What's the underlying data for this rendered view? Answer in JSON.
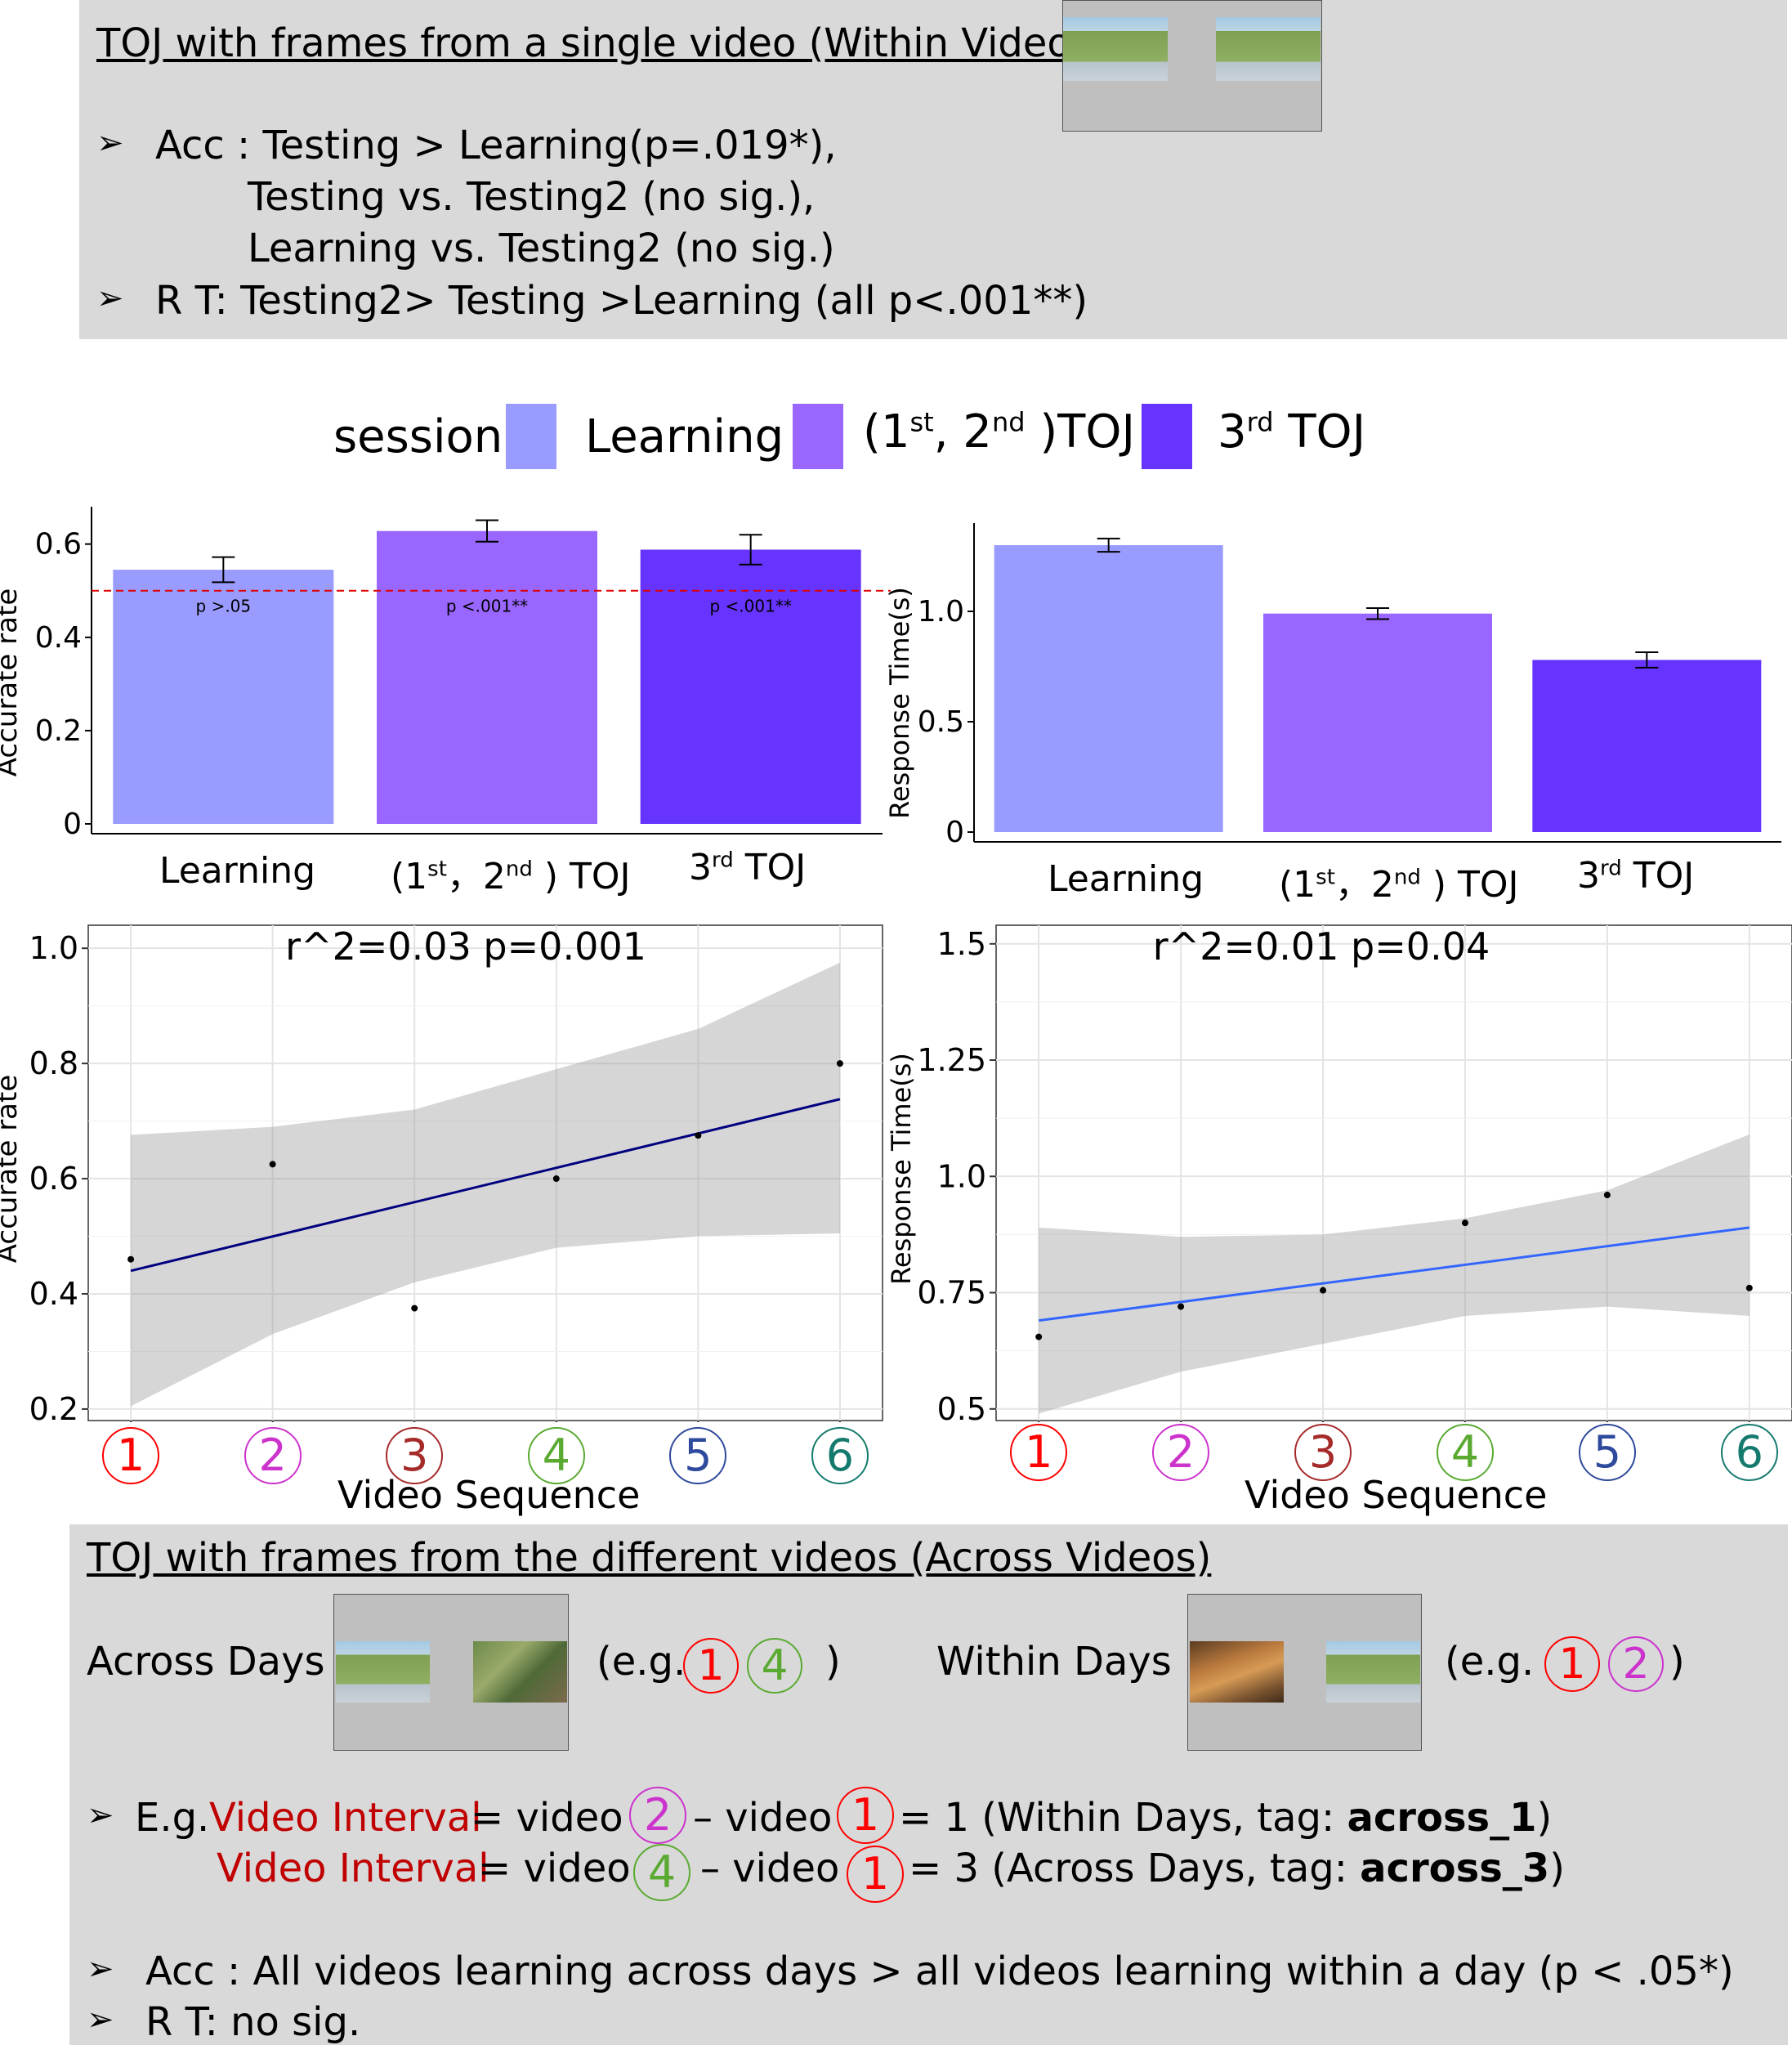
{
  "top_panel": {
    "title": "TOJ with frames from a single video (Within Videos)",
    "bullet": "➢",
    "bullets": [
      "Acc : Testing > Learning(p=.019*),",
      "Testing vs. Testing2 (no sig.),",
      "Learning vs. Testing2 (no sig.)",
      "R T:   Testing2> Testing >Learning (all p<.001**)"
    ]
  },
  "legend": {
    "title": "session",
    "items": [
      {
        "label": "Learning",
        "color": "#9a9bff"
      },
      {
        "label": "(1st, 2nd )TOJ",
        "color": "#9966ff"
      },
      {
        "label": "3rd TOJ",
        "color": "#6633ff"
      }
    ]
  },
  "chart_data": [
    {
      "type": "bar",
      "ylabel": "Accurate rate",
      "categories": [
        "Learning",
        "(1st, 2nd) TOJ",
        "3rd TOJ"
      ],
      "values": [
        0.545,
        0.628,
        0.588
      ],
      "errors": [
        0.027,
        0.023,
        0.032
      ],
      "colors": [
        "#9a9bff",
        "#9966ff",
        "#6633ff"
      ],
      "annotations": [
        "p >.05",
        "p <.001**",
        "p <.001**"
      ],
      "reference_line": 0.5,
      "ylim": [
        0,
        0.68
      ],
      "yticks": [
        0,
        0.2,
        0.4,
        0.6
      ],
      "ytick_labels": [
        "0",
        "0.2",
        "0.4",
        "0.6"
      ]
    },
    {
      "type": "bar",
      "ylabel": "Response Time(s)",
      "categories": [
        "Learning",
        "(1st, 2nd) TOJ",
        "3rd TOJ"
      ],
      "values": [
        1.3,
        0.99,
        0.78
      ],
      "errors": [
        0.03,
        0.025,
        0.035
      ],
      "colors": [
        "#9a9bff",
        "#9966ff",
        "#6633ff"
      ],
      "ylim": [
        0,
        1.4
      ],
      "yticks": [
        0,
        0.5,
        1.0
      ],
      "ytick_labels": [
        "0",
        "0.5",
        "1.0"
      ]
    },
    {
      "type": "scatter",
      "annotation": "r^2=0.03   p=0.001",
      "ylabel": "Accurate rate",
      "xlabel": "Video Sequence",
      "x": [
        1,
        2,
        3,
        4,
        5,
        6
      ],
      "y": [
        0.46,
        0.625,
        0.375,
        0.6,
        0.675,
        0.8
      ],
      "fit": {
        "x": [
          1,
          6
        ],
        "y": [
          0.44,
          0.738
        ]
      },
      "band_upper": [
        0.676,
        0.69,
        0.72,
        0.79,
        0.86,
        0.975
      ],
      "band_lower": [
        0.205,
        0.33,
        0.42,
        0.48,
        0.5,
        0.505
      ],
      "xlim": [
        0.7,
        6.3
      ],
      "ylim": [
        0.18,
        1.04
      ],
      "yticks": [
        0.2,
        0.4,
        0.6,
        0.8,
        1.0
      ],
      "ytick_labels": [
        "0.2",
        "0.4",
        "0.6",
        "0.8",
        "1.0"
      ],
      "line_color": "#00007f",
      "grid": true
    },
    {
      "type": "scatter",
      "annotation": "r^2=0.01   p=0.04",
      "ylabel": "Response Time(s)",
      "xlabel": "Video Sequence",
      "x": [
        1,
        2,
        3,
        4,
        5,
        6
      ],
      "y": [
        0.655,
        0.72,
        0.755,
        0.9,
        0.96,
        0.76
      ],
      "fit": {
        "x": [
          1,
          6
        ],
        "y": [
          0.69,
          0.89
        ]
      },
      "band_upper": [
        0.89,
        0.87,
        0.875,
        0.91,
        0.97,
        1.09
      ],
      "band_lower": [
        0.49,
        0.58,
        0.64,
        0.7,
        0.72,
        0.7
      ],
      "xlim": [
        0.7,
        6.3
      ],
      "ylim": [
        0.475,
        1.54
      ],
      "yticks": [
        0.5,
        0.75,
        1.0,
        1.25,
        1.5
      ],
      "ytick_labels": [
        "0.5",
        "0.75",
        "1.0",
        "1.25",
        "1.5"
      ],
      "line_color": "#3366ff",
      "grid": true
    }
  ],
  "video_markers": [
    {
      "label": "1",
      "color": "#ff0000"
    },
    {
      "label": "2",
      "color": "#cc33cc"
    },
    {
      "label": "3",
      "color": "#a52a2a"
    },
    {
      "label": "4",
      "color": "#5aaa32"
    },
    {
      "label": "5",
      "color": "#2e4a9c"
    },
    {
      "label": "6",
      "color": "#157a6e"
    }
  ],
  "bottom_panel": {
    "title": "TOJ with frames from the different videos (Across Videos)",
    "across_days": "Across Days",
    "within_days": "Within Days",
    "eg_open": "(e.g.",
    "eg_close": ")",
    "bullet": "➢",
    "eg_prefix": "E.g.",
    "video_interval": "Video Interval",
    "eq_video": "= video",
    "dash_video": "– video",
    "line1_tail": "= 1 (Within Days, tag:",
    "line1_tag": "across_1",
    "line2_tail": "= 3 (Across Days, tag:",
    "line2_tag": "across_3",
    "close_paren": ")",
    "acc": "Acc : All videos learning across days > all videos learning within a day (p < .05*)",
    "rt": "R T:   no sig."
  }
}
